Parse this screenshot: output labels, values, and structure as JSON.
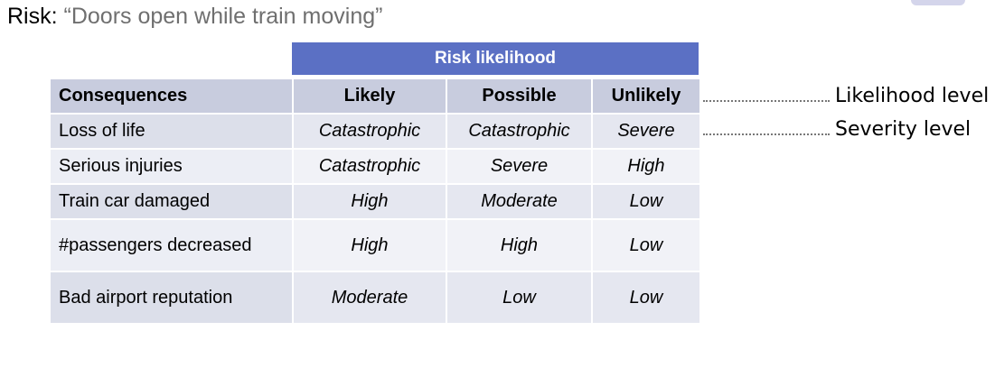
{
  "slide": {
    "title_prefix": "Risk:",
    "title_quote": "“Doors open while train moving”"
  },
  "table": {
    "band_label": "Risk likelihood",
    "header": {
      "consequences": "Consequences",
      "likely": "Likely",
      "possible": "Possible",
      "unlikely": "Unlikely"
    },
    "rows": [
      {
        "consequence": "Loss of life",
        "likely": "Catastrophic",
        "possible": "Catastrophic",
        "unlikely": "Severe"
      },
      {
        "consequence": "Serious injuries",
        "likely": "Catastrophic",
        "possible": "Severe",
        "unlikely": "High"
      },
      {
        "consequence": "Train car damaged",
        "likely": "High",
        "possible": "Moderate",
        "unlikely": "Low"
      },
      {
        "consequence": "#passengers decreased",
        "likely": "High",
        "possible": "High",
        "unlikely": "Low"
      },
      {
        "consequence": "Bad airport reputation",
        "likely": "Moderate",
        "possible": "Low",
        "unlikely": "Low"
      }
    ]
  },
  "annotations": {
    "likelihood_level": "Likelihood level",
    "severity_level": "Severity level"
  }
}
